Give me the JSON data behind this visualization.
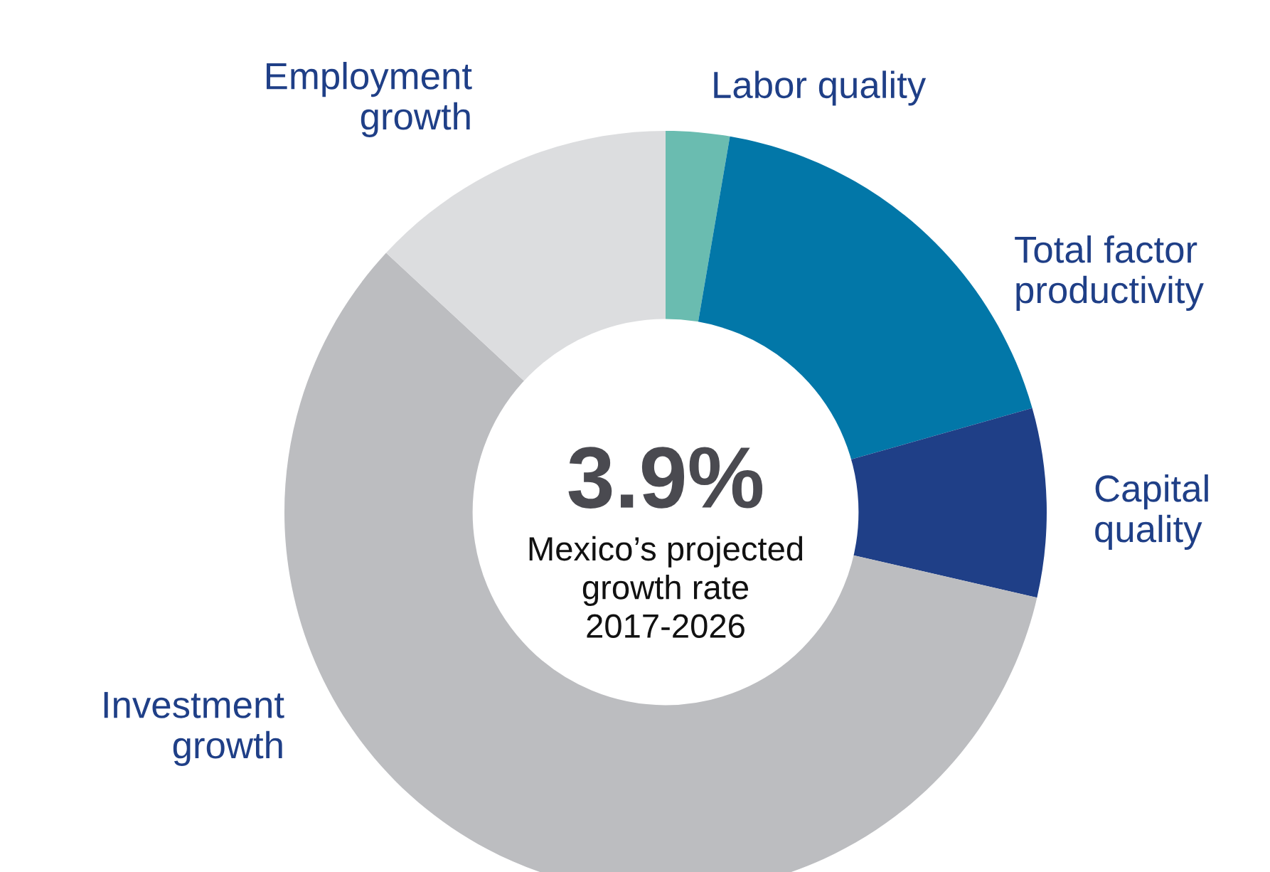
{
  "chart_data": {
    "type": "donut",
    "categories": [
      "Labor quality",
      "Total factor\nproductivity",
      "Capital\nquality",
      "Investment\ngrowth",
      "Employment\ngrowth"
    ],
    "values": [
      2.7,
      17.9,
      8.0,
      58.3,
      13.1
    ],
    "colors": [
      "#6abcb0",
      "#0277a8",
      "#1f3f87",
      "#bcbdc0",
      "#dcdddf"
    ],
    "annotations": [
      "3.9%",
      "Mexico’s projected\ngrowth rate\n2017-2026"
    ],
    "legend": false
  }
}
